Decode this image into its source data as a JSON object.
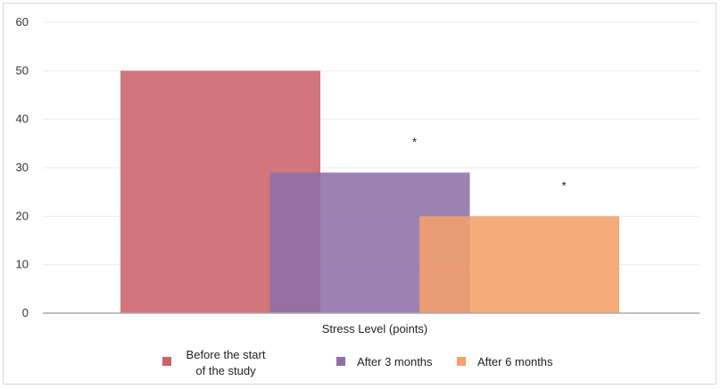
{
  "chart_data": {
    "type": "bar",
    "xlabel": "Stress Level (points)",
    "ylabel": "",
    "ylim": [
      0,
      60
    ],
    "yticks": [
      0,
      10,
      20,
      30,
      40,
      50,
      60
    ],
    "grid": true,
    "legend_position": "bottom",
    "series": [
      {
        "name": "Before the start of the study",
        "value": 50,
        "color": "#c9636a",
        "annotation": ""
      },
      {
        "name": "After 3 months",
        "value": 29,
        "color": "#8e6fa8",
        "annotation": "*"
      },
      {
        "name": "After 6 months",
        "value": 20,
        "color": "#f4a06b",
        "annotation": "*"
      }
    ]
  }
}
